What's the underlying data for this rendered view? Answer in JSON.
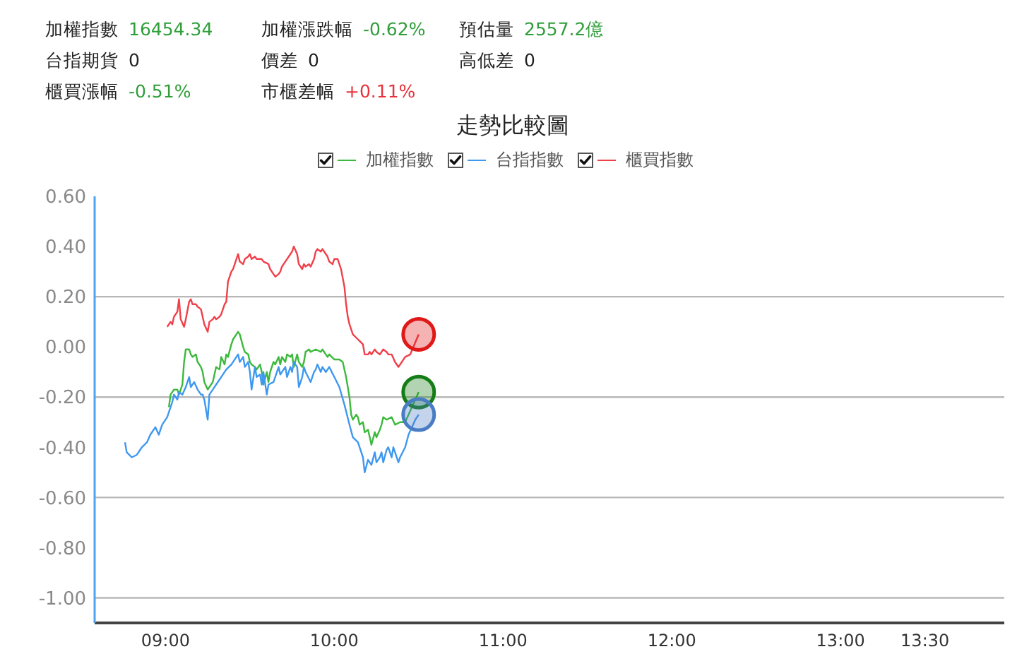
{
  "chart_data": {
    "type": "line",
    "title": "走勢比較圖",
    "annotations": [
      "加權指數 16454.34",
      "加權漲跌幅 -0.62%",
      "預估量 2557.2億",
      "台指期貨 0",
      "價差 0",
      "高低差 0",
      "櫃買漲幅 -0.51%",
      "市櫃差幅 +0.11%"
    ],
    "xlim": [
      8.58,
      13.97
    ],
    "xticks": [
      {
        "value": 9,
        "label": "09:00"
      },
      {
        "value": 10,
        "label": "10:00"
      },
      {
        "value": 11,
        "label": "11:00"
      },
      {
        "value": 12,
        "label": "12:00"
      },
      {
        "value": 13,
        "label": "13:00"
      },
      {
        "value": 13.5,
        "label": "13:30"
      }
    ],
    "ylim": [
      -1.1,
      0.6
    ],
    "yticks": [
      {
        "value": 0.6,
        "label": "0.60"
      },
      {
        "value": 0.4,
        "label": "0.40"
      },
      {
        "value": 0.2,
        "label": "0.20"
      },
      {
        "value": 0,
        "label": "0.00"
      },
      {
        "value": -0.2,
        "label": "-0.20"
      },
      {
        "value": -0.4,
        "label": "-0.40"
      },
      {
        "value": -0.6,
        "label": "-0.60"
      },
      {
        "value": -0.8,
        "label": "-0.80"
      },
      {
        "value": -1.0,
        "label": "-1.00"
      }
    ],
    "legend": "top",
    "ref_lines": [
      {
        "axis": "y",
        "value": 0.2,
        "color": "#b8b8b8"
      },
      {
        "axis": "y",
        "value": -0.2,
        "color": "#b8b8b8"
      },
      {
        "axis": "y",
        "value": -0.6,
        "color": "#b8b8b8"
      },
      {
        "axis": "y",
        "value": -1.0,
        "color": "#b8b8b8"
      }
    ],
    "series": [
      {
        "name": "加權指數",
        "color": "#3cb93c",
        "x": [
          9.02,
          9.03,
          9.05,
          9.07,
          9.08,
          9.1,
          9.11,
          9.12,
          9.14,
          9.15,
          9.16,
          9.18,
          9.19,
          9.21,
          9.22,
          9.23,
          9.25,
          9.26,
          9.28,
          9.29,
          9.3,
          9.32,
          9.33,
          9.35,
          9.36,
          9.37,
          9.39,
          9.4,
          9.42,
          9.43,
          9.44,
          9.46,
          9.47,
          9.49,
          9.5,
          9.51,
          9.53,
          9.54,
          9.56,
          9.57,
          9.58,
          9.6,
          9.61,
          9.62,
          9.64,
          9.65,
          9.67,
          9.68,
          9.69,
          9.71,
          9.72,
          9.74,
          9.75,
          9.76,
          9.78,
          9.79,
          9.81,
          9.82,
          9.83,
          9.85,
          9.86,
          9.89,
          9.92,
          9.93,
          9.95,
          9.96,
          9.97,
          10.0,
          10.03,
          10.05,
          10.07,
          10.09,
          10.1,
          10.11,
          10.13,
          10.14,
          10.15,
          10.17,
          10.18,
          10.2,
          10.21,
          10.22,
          10.24,
          10.25,
          10.27,
          10.28,
          10.29,
          10.31,
          10.34,
          10.36,
          10.39,
          10.42,
          10.5
        ],
        "values": [
          -0.24,
          -0.19,
          -0.17,
          -0.17,
          -0.19,
          -0.15,
          -0.06,
          -0.01,
          -0.01,
          -0.03,
          -0.04,
          -0.03,
          -0.06,
          -0.08,
          -0.1,
          -0.14,
          -0.17,
          -0.16,
          -0.14,
          -0.11,
          -0.08,
          -0.09,
          -0.04,
          -0.07,
          -0.03,
          -0.04,
          0.01,
          0.03,
          0.05,
          0.06,
          0.05,
          0,
          -0.02,
          -0.03,
          -0.06,
          -0.07,
          -0.08,
          -0.09,
          -0.07,
          -0.1,
          -0.15,
          -0.1,
          -0.14,
          -0.1,
          -0.06,
          -0.07,
          -0.04,
          -0.07,
          -0.04,
          -0.06,
          -0.03,
          -0.04,
          -0.03,
          -0.08,
          -0.03,
          -0.06,
          -0.08,
          -0.06,
          -0.02,
          -0.01,
          -0.02,
          -0.01,
          -0.02,
          -0.01,
          -0.03,
          -0.04,
          -0.03,
          -0.05,
          -0.05,
          -0.06,
          -0.12,
          -0.2,
          -0.27,
          -0.29,
          -0.27,
          -0.28,
          -0.31,
          -0.3,
          -0.34,
          -0.33,
          -0.36,
          -0.39,
          -0.34,
          -0.36,
          -0.33,
          -0.31,
          -0.28,
          -0.29,
          -0.28,
          -0.31,
          -0.3,
          -0.3,
          -0.18
        ]
      },
      {
        "name": "台指指數",
        "color": "#3f98f0",
        "x": [
          8.76,
          8.77,
          8.8,
          8.83,
          8.86,
          8.89,
          8.91,
          8.94,
          8.96,
          8.98,
          9.01,
          9.03,
          9.04,
          9.05,
          9.07,
          9.08,
          9.1,
          9.12,
          9.14,
          9.15,
          9.17,
          9.19,
          9.21,
          9.22,
          9.23,
          9.25,
          9.26,
          9.28,
          9.3,
          9.33,
          9.36,
          9.39,
          9.41,
          9.43,
          9.44,
          9.46,
          9.47,
          9.49,
          9.5,
          9.51,
          9.53,
          9.54,
          9.56,
          9.57,
          9.58,
          9.6,
          9.61,
          9.64,
          9.65,
          9.67,
          9.68,
          9.71,
          9.72,
          9.74,
          9.75,
          9.76,
          9.78,
          9.79,
          9.81,
          9.82,
          9.83,
          9.86,
          9.88,
          9.89,
          9.9,
          9.92,
          9.93,
          9.95,
          9.97,
          10.0,
          10.03,
          10.06,
          10.09,
          10.11,
          10.14,
          10.17,
          10.18,
          10.2,
          10.22,
          10.24,
          10.25,
          10.27,
          10.28,
          10.29,
          10.31,
          10.32,
          10.34,
          10.35,
          10.36,
          10.38,
          10.39,
          10.42,
          10.44,
          10.48,
          10.5
        ],
        "values": [
          -0.38,
          -0.42,
          -0.44,
          -0.43,
          -0.4,
          -0.38,
          -0.35,
          -0.32,
          -0.35,
          -0.31,
          -0.28,
          -0.24,
          -0.22,
          -0.19,
          -0.21,
          -0.18,
          -0.19,
          -0.16,
          -0.12,
          -0.16,
          -0.14,
          -0.17,
          -0.19,
          -0.19,
          -0.21,
          -0.29,
          -0.19,
          -0.17,
          -0.15,
          -0.12,
          -0.09,
          -0.07,
          -0.05,
          -0.03,
          -0.06,
          -0.04,
          -0.08,
          -0.06,
          -0.1,
          -0.17,
          -0.08,
          -0.12,
          -0.11,
          -0.15,
          -0.1,
          -0.19,
          -0.15,
          -0.14,
          -0.12,
          -0.08,
          -0.11,
          -0.08,
          -0.12,
          -0.08,
          -0.1,
          -0.06,
          -0.08,
          -0.16,
          -0.12,
          -0.08,
          -0.1,
          -0.14,
          -0.1,
          -0.09,
          -0.07,
          -0.1,
          -0.08,
          -0.1,
          -0.08,
          -0.12,
          -0.16,
          -0.23,
          -0.31,
          -0.36,
          -0.38,
          -0.44,
          -0.5,
          -0.45,
          -0.47,
          -0.42,
          -0.46,
          -0.44,
          -0.42,
          -0.46,
          -0.41,
          -0.4,
          -0.44,
          -0.4,
          -0.42,
          -0.46,
          -0.44,
          -0.4,
          -0.35,
          -0.29,
          -0.27
        ]
      },
      {
        "name": "櫃買指數",
        "color": "#f0404a",
        "x": [
          9.01,
          9.03,
          9.04,
          9.05,
          9.07,
          9.08,
          9.09,
          9.11,
          9.12,
          9.14,
          9.15,
          9.16,
          9.18,
          9.19,
          9.21,
          9.22,
          9.23,
          9.25,
          9.26,
          9.28,
          9.29,
          9.3,
          9.32,
          9.33,
          9.35,
          9.36,
          9.37,
          9.39,
          9.4,
          9.42,
          9.43,
          9.44,
          9.46,
          9.47,
          9.49,
          9.5,
          9.51,
          9.53,
          9.54,
          9.57,
          9.58,
          9.61,
          9.62,
          9.64,
          9.65,
          9.67,
          9.68,
          9.69,
          9.71,
          9.72,
          9.74,
          9.75,
          9.76,
          9.78,
          9.79,
          9.81,
          9.82,
          9.83,
          9.85,
          9.86,
          9.88,
          9.89,
          9.9,
          9.92,
          9.93,
          9.95,
          9.96,
          9.97,
          9.99,
          10.0,
          10.02,
          10.03,
          10.04,
          10.06,
          10.07,
          10.08,
          10.09,
          10.11,
          10.14,
          10.17,
          10.18,
          10.2,
          10.21,
          10.22,
          10.24,
          10.25,
          10.27,
          10.28,
          10.29,
          10.31,
          10.32,
          10.34,
          10.36,
          10.38,
          10.39,
          10.42,
          10.45,
          10.5
        ],
        "values": [
          0.08,
          0.1,
          0.09,
          0.12,
          0.14,
          0.19,
          0.11,
          0.08,
          0.11,
          0.18,
          0.19,
          0.17,
          0.17,
          0.16,
          0.15,
          0.12,
          0.09,
          0.06,
          0.1,
          0.11,
          0.12,
          0.11,
          0.12,
          0.13,
          0.17,
          0.18,
          0.26,
          0.3,
          0.31,
          0.35,
          0.37,
          0.34,
          0.33,
          0.35,
          0.36,
          0.37,
          0.35,
          0.36,
          0.35,
          0.35,
          0.34,
          0.33,
          0.31,
          0.29,
          0.28,
          0.29,
          0.3,
          0.32,
          0.34,
          0.35,
          0.37,
          0.38,
          0.4,
          0.37,
          0.33,
          0.31,
          0.33,
          0.32,
          0.33,
          0.32,
          0.35,
          0.38,
          0.39,
          0.38,
          0.39,
          0.37,
          0.36,
          0.34,
          0.33,
          0.35,
          0.35,
          0.33,
          0.31,
          0.24,
          0.17,
          0.12,
          0.09,
          0.05,
          0.03,
          0.01,
          -0.03,
          -0.03,
          -0.02,
          -0.03,
          -0.01,
          -0.02,
          -0.03,
          -0.02,
          -0.01,
          -0.02,
          -0.03,
          -0.03,
          -0.06,
          -0.08,
          -0.07,
          -0.04,
          -0.03,
          0.05
        ]
      },
      {
        "type": "scatter",
        "color": "#e01818",
        "x": [
          10.5
        ],
        "values": [
          0.05
        ]
      },
      {
        "type": "scatter",
        "color": "#157d15",
        "x": [
          10.5
        ],
        "values": [
          -0.18
        ]
      },
      {
        "type": "scatter",
        "color": "#4a7cc4",
        "x": [
          10.5
        ],
        "values": [
          -0.27
        ]
      }
    ]
  }
}
